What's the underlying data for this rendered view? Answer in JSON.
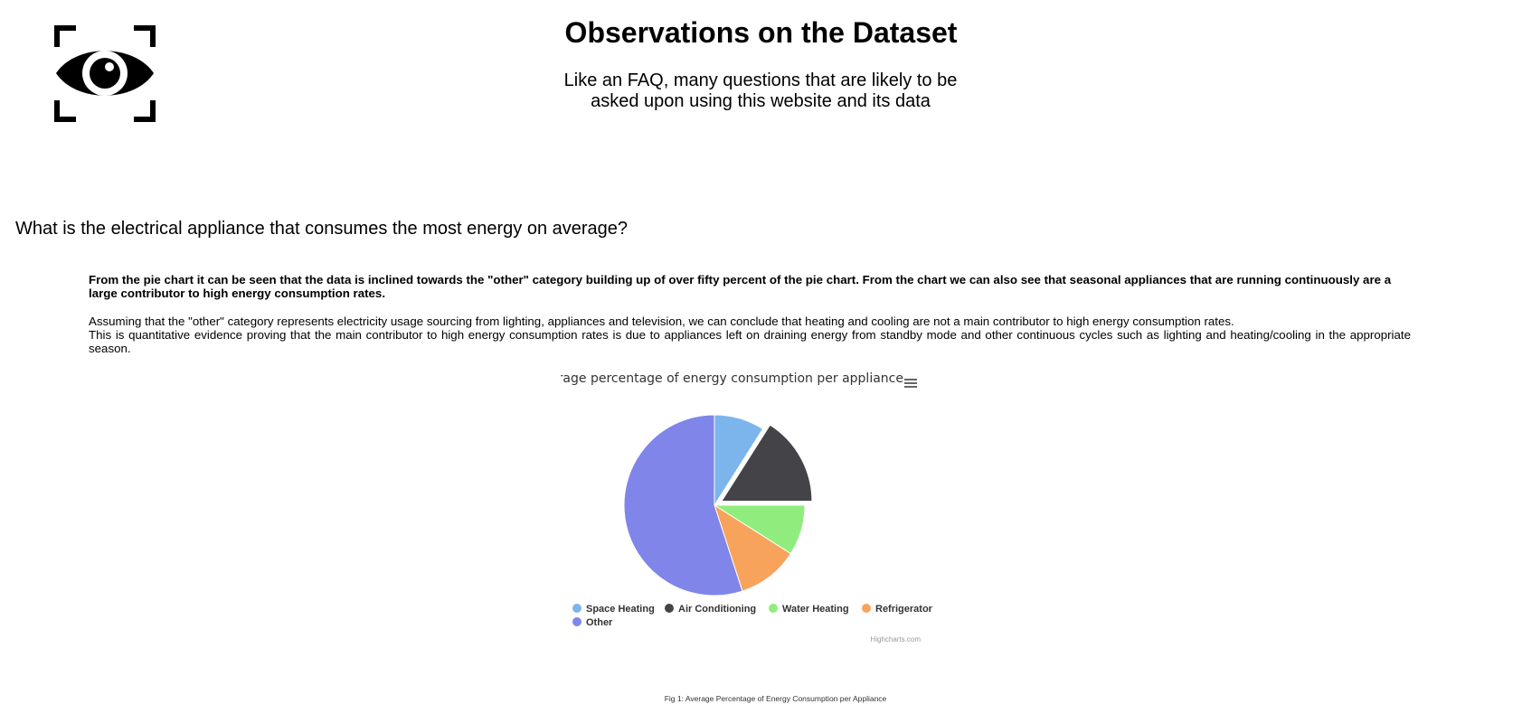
{
  "header": {
    "logo_icon": "eye-scan-icon",
    "title": "Observations on the Dataset",
    "subtitle_line1": "Like an FAQ, many questions that are likely to be",
    "subtitle_line2": "asked upon using this website and its data"
  },
  "faq": {
    "question": "What is the electrical appliance that consumes the most energy on average?",
    "answer_bold": "From the pie chart it can be seen that the data is inclined towards the \"other\" category building up of over fifty percent of the pie chart. From the chart we can also see that seasonal appliances that are running continuously are a large contributor to high energy consumption rates.",
    "answer_line1": "Assuming that the \"other\" category represents electricity usage sourcing from lighting, appliances and television, we can conclude that heating and cooling are not a main contributor to high energy consumption rates.",
    "answer_line2": "This is quantitative evidence proving that the main contributor to high energy consumption rates is due to appliances left on draining energy from standby mode and other continuous cycles such as lighting and heating/cooling in the appropriate season."
  },
  "chart_menu_icon": "hamburger-menu-icon",
  "chart_credits": "Highcharts.com",
  "caption": "Fig 1: Average Percentage of Energy Consumption per Appliance",
  "chart_data": {
    "type": "pie",
    "title": "Average percentage of energy consumption per appliance",
    "categories": [
      "Space Heating",
      "Air Conditioning",
      "Water Heating",
      "Refrigerator",
      "Other"
    ],
    "values": [
      9,
      16,
      9,
      11,
      55
    ],
    "unit": "%",
    "colors": [
      "#7cb5ec",
      "#434348",
      "#90ed7d",
      "#f7a35c",
      "#8085e9"
    ],
    "sliced": "Air Conditioning",
    "legend": "bottom"
  }
}
